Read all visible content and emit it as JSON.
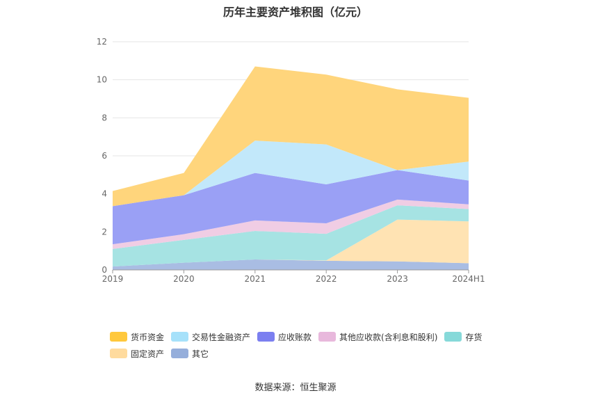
{
  "title": "历年主要资产堆积图（亿元）",
  "source": "数据来源：恒生聚源",
  "chart_data": {
    "type": "area",
    "stacked": true,
    "x": [
      "2019",
      "2020",
      "2021",
      "2022",
      "2023",
      "2024H1"
    ],
    "ylim": [
      0,
      12
    ],
    "yticks": [
      "0",
      "2",
      "4",
      "6",
      "8",
      "10",
      "12"
    ],
    "grid": true,
    "legend_position": "bottom",
    "series": [
      {
        "name": "其它",
        "color": "#a9bde3",
        "values": [
          0.18,
          0.38,
          0.55,
          0.48,
          0.45,
          0.35
        ]
      },
      {
        "name": "固定资产",
        "color": "#ffe3b3",
        "values": [
          0.0,
          0.0,
          0.0,
          0.02,
          2.2,
          2.2
        ]
      },
      {
        "name": "存货",
        "color": "#a6e3e3",
        "values": [
          0.92,
          1.2,
          1.5,
          1.4,
          0.75,
          0.65
        ]
      },
      {
        "name": "其他应收款(含利息和股利)",
        "color": "#f0cde4",
        "values": [
          0.25,
          0.3,
          0.55,
          0.55,
          0.3,
          0.25
        ]
      },
      {
        "name": "应收账款",
        "color": "#9aa0f5",
        "values": [
          2.0,
          2.05,
          2.5,
          2.05,
          1.55,
          1.25
        ]
      },
      {
        "name": "交易性金融资产",
        "color": "#c2e8fa",
        "values": [
          0.0,
          0.0,
          1.7,
          2.1,
          0.0,
          1.0
        ]
      },
      {
        "name": "货币资金",
        "color": "#ffd57c",
        "values": [
          0.8,
          1.17,
          3.9,
          3.67,
          4.25,
          3.35
        ]
      }
    ],
    "legend_rows": [
      [
        {
          "name": "货币资金",
          "color": "#ffc83c"
        },
        {
          "name": "交易性金融资产",
          "color": "#a6e1fa"
        },
        {
          "name": "应收账款",
          "color": "#7b7ff0"
        },
        {
          "name": "其他应收款(含利息和股利)",
          "color": "#e8b8dc"
        },
        {
          "name": "存货",
          "color": "#86d9d9"
        }
      ],
      [
        {
          "name": "固定资产",
          "color": "#ffdb9e"
        },
        {
          "name": "其它",
          "color": "#95aedb"
        }
      ]
    ]
  }
}
